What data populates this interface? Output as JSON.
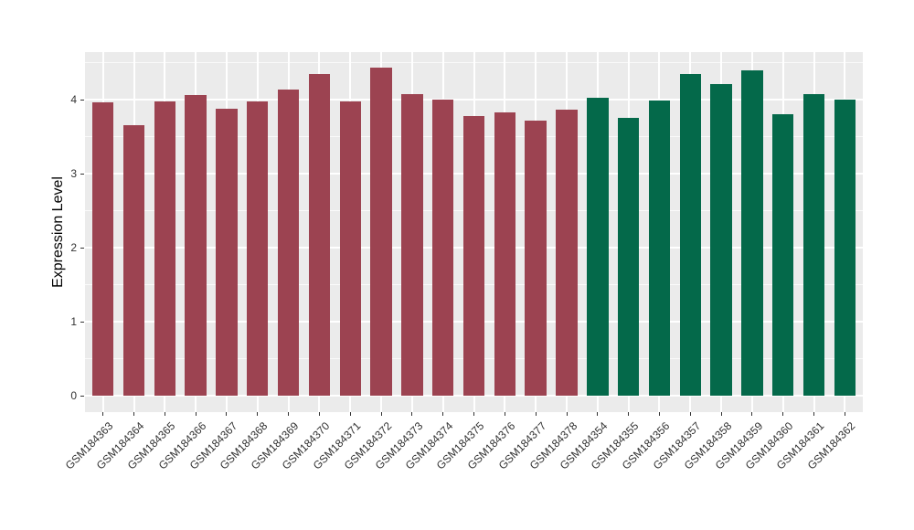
{
  "chart_data": {
    "type": "bar",
    "title": "",
    "xlabel": "",
    "ylabel": "Expression Level",
    "ylim": [
      -0.22,
      4.64
    ],
    "yticks": [
      0,
      1,
      2,
      3,
      4
    ],
    "yticks_minor": [
      0.5,
      1.5,
      2.5,
      3.5,
      4.5
    ],
    "grid": "on",
    "legend": "none",
    "panel_bg": "#EBEBEB",
    "grid_color": "#FFFFFF",
    "axis_text_color": "#333333",
    "groups": [
      {
        "name": "group-1",
        "color": "#9C4351"
      },
      {
        "name": "group-2",
        "color": "#04694A"
      }
    ],
    "bars": [
      {
        "label": "GSM184363",
        "value": 3.96,
        "group": 0
      },
      {
        "label": "GSM184364",
        "value": 3.65,
        "group": 0
      },
      {
        "label": "GSM184365",
        "value": 3.98,
        "group": 0
      },
      {
        "label": "GSM184366",
        "value": 4.06,
        "group": 0
      },
      {
        "label": "GSM184367",
        "value": 3.88,
        "group": 0
      },
      {
        "label": "GSM184368",
        "value": 3.98,
        "group": 0
      },
      {
        "label": "GSM184369",
        "value": 4.14,
        "group": 0
      },
      {
        "label": "GSM184370",
        "value": 4.35,
        "group": 0
      },
      {
        "label": "GSM184371",
        "value": 3.98,
        "group": 0
      },
      {
        "label": "GSM184372",
        "value": 4.43,
        "group": 0
      },
      {
        "label": "GSM184373",
        "value": 4.08,
        "group": 0
      },
      {
        "label": "GSM184374",
        "value": 4.0,
        "group": 0
      },
      {
        "label": "GSM184375",
        "value": 3.78,
        "group": 0
      },
      {
        "label": "GSM184376",
        "value": 3.83,
        "group": 0
      },
      {
        "label": "GSM184377",
        "value": 3.71,
        "group": 0
      },
      {
        "label": "GSM184378",
        "value": 3.87,
        "group": 0
      },
      {
        "label": "GSM184354",
        "value": 4.03,
        "group": 1
      },
      {
        "label": "GSM184355",
        "value": 3.75,
        "group": 1
      },
      {
        "label": "GSM184356",
        "value": 3.99,
        "group": 1
      },
      {
        "label": "GSM184357",
        "value": 4.34,
        "group": 1
      },
      {
        "label": "GSM184358",
        "value": 4.21,
        "group": 1
      },
      {
        "label": "GSM184359",
        "value": 4.4,
        "group": 1
      },
      {
        "label": "GSM184360",
        "value": 3.8,
        "group": 1
      },
      {
        "label": "GSM184361",
        "value": 4.08,
        "group": 1
      },
      {
        "label": "GSM184362",
        "value": 4.0,
        "group": 1
      }
    ]
  }
}
